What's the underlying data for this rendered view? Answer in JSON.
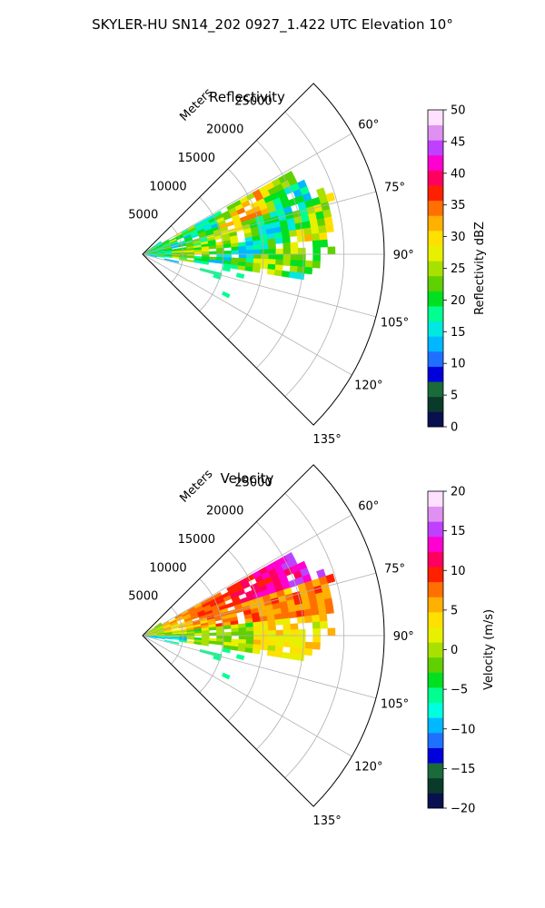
{
  "figure": {
    "suptitle": "SKYLER-HU  SN14_202  0927_1.422 UTC Elevation 10°"
  },
  "chart_data": [
    {
      "type": "heatmap",
      "projection": "polar-sector",
      "title": "Reflectivity",
      "radial_label": "Meters",
      "r_ticks": [
        5000,
        10000,
        15000,
        20000,
        25000
      ],
      "r_max": 30000,
      "theta_ticks": [
        "60°",
        "75°",
        "90°",
        "105°",
        "120°",
        "135°"
      ],
      "theta_tick_values": [
        60,
        75,
        90,
        105,
        120,
        135
      ],
      "theta_range": [
        45,
        135
      ],
      "grid": true,
      "colorbar": {
        "label": "Reflectivity dBZ",
        "min": 0,
        "max": 50,
        "ticks": [
          0,
          5,
          10,
          15,
          20,
          25,
          30,
          35,
          40,
          45,
          50
        ],
        "tick_labels": [
          "0",
          "5",
          "10",
          "15",
          "20",
          "25",
          "30",
          "35",
          "40",
          "45",
          "50"
        ],
        "colors": [
          "#081050",
          "#0a3a2a",
          "#1a6a3a",
          "#0000dd",
          "#2070ff",
          "#00b8ff",
          "#00e8e0",
          "#00ff90",
          "#00e020",
          "#60d000",
          "#a8e000",
          "#e8f000",
          "#ffe000",
          "#ffb000",
          "#ff7000",
          "#ff2000",
          "#ff0060",
          "#ff00d0",
          "#c040ff",
          "#e090f0",
          "#ffe0ff"
        ]
      }
    },
    {
      "type": "heatmap",
      "projection": "polar-sector",
      "title": "Velocity",
      "radial_label": "Meters",
      "r_ticks": [
        5000,
        10000,
        15000,
        20000,
        25000
      ],
      "r_max": 30000,
      "theta_ticks": [
        "60°",
        "75°",
        "90°",
        "105°",
        "120°",
        "135°"
      ],
      "theta_tick_values": [
        60,
        75,
        90,
        105,
        120,
        135
      ],
      "theta_range": [
        45,
        135
      ],
      "grid": true,
      "colorbar": {
        "label": "Velocity (m/s)",
        "min": -20,
        "max": 20,
        "ticks": [
          -20,
          -15,
          -10,
          -5,
          0,
          5,
          10,
          15,
          20
        ],
        "tick_labels": [
          "−20",
          "−15",
          "−10",
          "−5",
          "0",
          "5",
          "10",
          "15",
          "20"
        ],
        "colors": [
          "#081050",
          "#0a3a2a",
          "#1a6a3a",
          "#0000dd",
          "#2070ff",
          "#00b8ff",
          "#00ffe0",
          "#00ff90",
          "#00e020",
          "#60d000",
          "#a8e000",
          "#e8f000",
          "#ffe000",
          "#ffb000",
          "#ff7000",
          "#ff2000",
          "#ff0060",
          "#ff00d0",
          "#c040ff",
          "#e090f0",
          "#ffe0ff"
        ]
      }
    }
  ]
}
